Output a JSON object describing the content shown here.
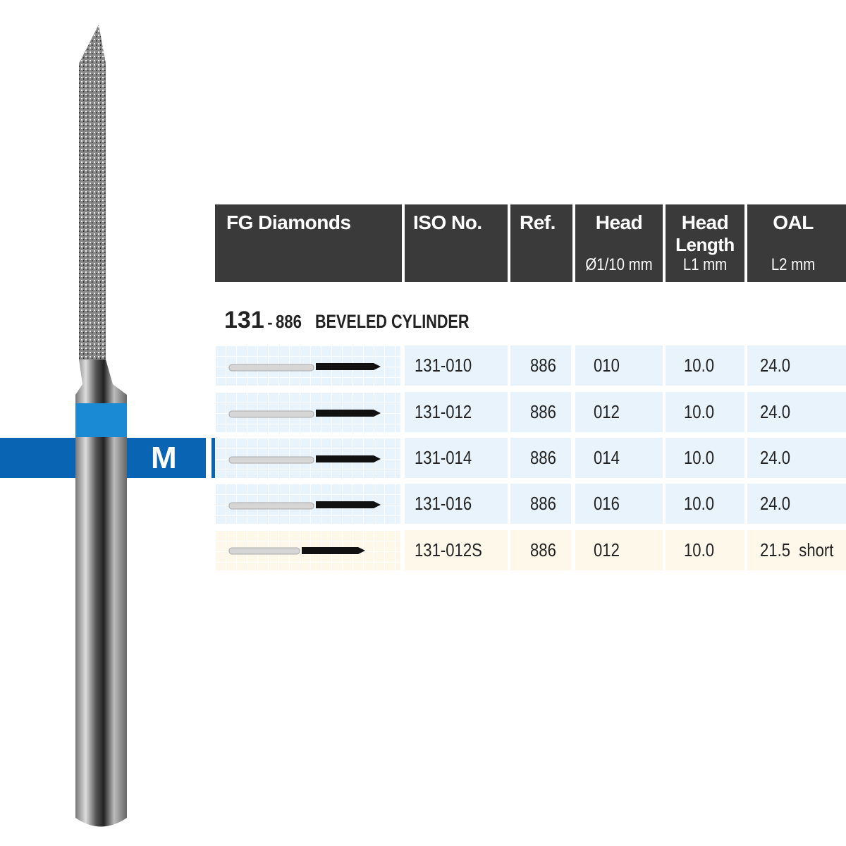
{
  "header": {
    "columns": [
      {
        "title": "FG Diamonds",
        "sub": ""
      },
      {
        "title": "ISO No.",
        "sub": ""
      },
      {
        "title": "Ref.",
        "sub": ""
      },
      {
        "title": "Head",
        "sub": "Ø1/10 mm"
      },
      {
        "title": "Head",
        "title2": "Length",
        "sub": "L1 mm"
      },
      {
        "title": "OAL",
        "sub": "L2 mm"
      }
    ]
  },
  "section": {
    "number": "131",
    "separator": "-",
    "ref": "886",
    "shape": "BEVELED CYLINDER"
  },
  "grit": {
    "label": "M",
    "color": "#0a64b4",
    "band_color": "#1a8ad4"
  },
  "rows": [
    {
      "iso": "131-010",
      "ref": "886",
      "head": "010",
      "length": "10.0",
      "oal": "24.0",
      "tint": "#e8f3fc"
    },
    {
      "iso": "131-012",
      "ref": "886",
      "head": "012",
      "length": "10.0",
      "oal": "24.0",
      "tint": "#e8f3fc"
    },
    {
      "iso": "131-014",
      "ref": "886",
      "head": "014",
      "length": "10.0",
      "oal": "24.0",
      "tint": "#e8f3fc"
    },
    {
      "iso": "131-016",
      "ref": "886",
      "head": "016",
      "length": "10.0",
      "oal": "24.0",
      "tint": "#e8f3fc"
    },
    {
      "iso": "131-012S",
      "ref": "886",
      "head": "012",
      "length": "10.0",
      "oal": "21.5  short",
      "tint": "#fdf8ea"
    }
  ]
}
